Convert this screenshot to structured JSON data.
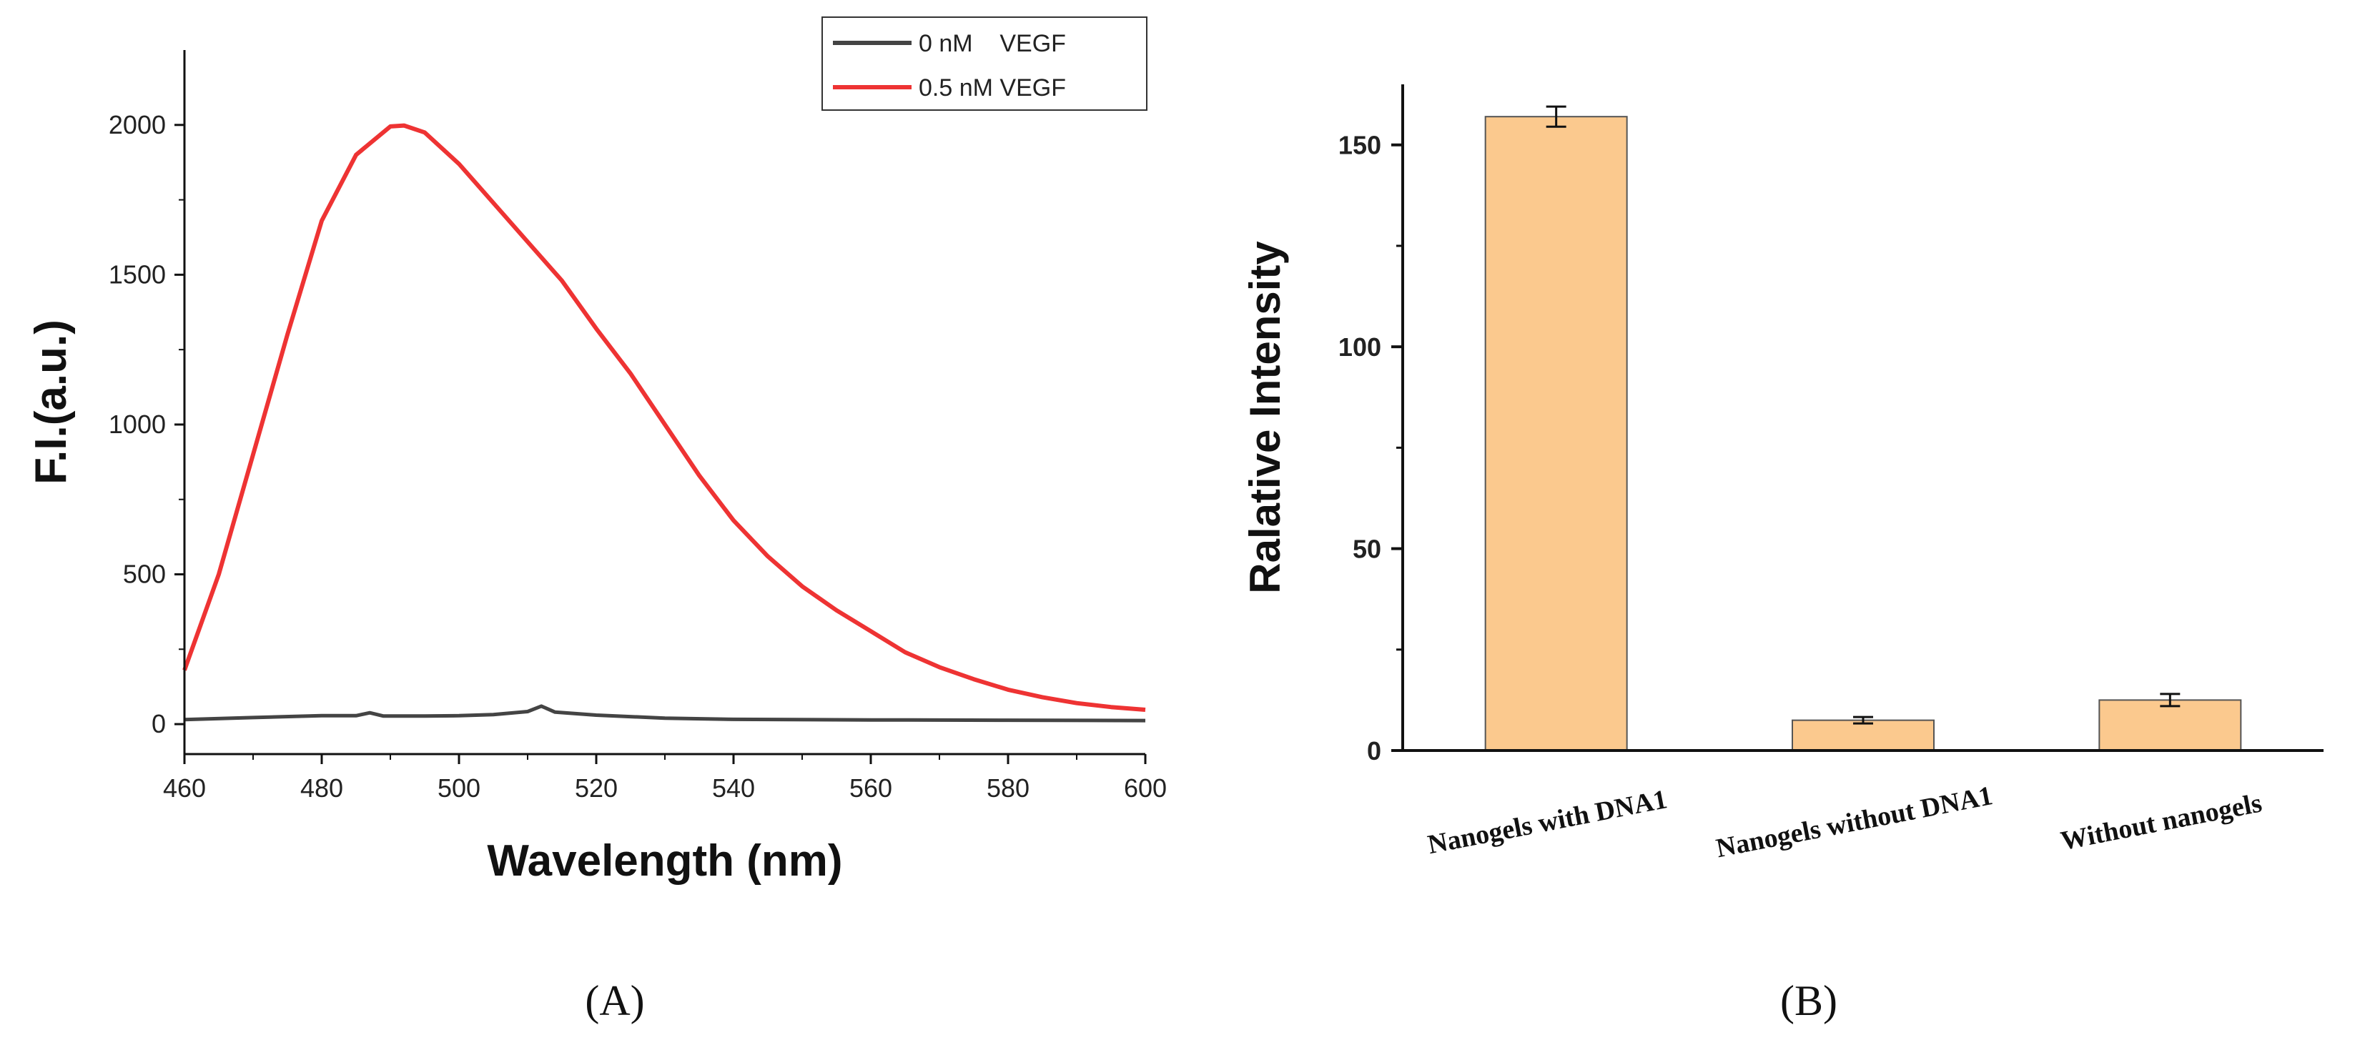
{
  "chart_data": [
    {
      "type": "line",
      "xlabel": "Wavelength (nm)",
      "ylabel": "F.I.(a.u.)",
      "xlim": [
        460,
        600
      ],
      "ylim": [
        -100,
        2250
      ],
      "xticks": [
        460,
        480,
        500,
        520,
        540,
        560,
        580,
        600
      ],
      "yticks": [
        0,
        500,
        1000,
        1500,
        2000
      ],
      "legend_position": "top-right",
      "series": [
        {
          "name": "0 nM    VEGF",
          "color": "#444444",
          "x": [
            460,
            470,
            480,
            485,
            487,
            489,
            495,
            500,
            505,
            510,
            512,
            514,
            520,
            530,
            540,
            560,
            580,
            600
          ],
          "y": [
            15,
            22,
            28,
            28,
            38,
            27,
            27,
            28,
            32,
            42,
            60,
            40,
            30,
            20,
            16,
            14,
            13,
            12
          ]
        },
        {
          "name": "0.5 nM VEGF",
          "color": "#ee3333",
          "x": [
            460,
            465,
            470,
            475,
            480,
            485,
            490,
            492,
            495,
            500,
            505,
            510,
            515,
            520,
            525,
            530,
            535,
            540,
            545,
            550,
            555,
            560,
            565,
            570,
            575,
            580,
            585,
            590,
            595,
            600
          ],
          "y": [
            180,
            500,
            900,
            1300,
            1680,
            1900,
            1995,
            1998,
            1975,
            1870,
            1740,
            1610,
            1480,
            1320,
            1170,
            1000,
            830,
            680,
            560,
            460,
            380,
            310,
            240,
            190,
            150,
            115,
            90,
            70,
            57,
            48
          ]
        }
      ]
    },
    {
      "type": "bar",
      "ylabel": "Ralative Intensity",
      "ylim": [
        0,
        165
      ],
      "yticks": [
        0,
        50,
        100,
        150
      ],
      "categories": [
        "Nanogels with DNA1",
        "Nanogels without DNA1",
        "Without nanogels"
      ],
      "values": [
        157,
        7.5,
        12.5
      ],
      "errors": [
        2.5,
        0.8,
        1.5
      ],
      "bar_color": "#fbc98e",
      "edge_color": "#555555"
    }
  ],
  "panels": {
    "a": "(A)",
    "b": "(B)"
  }
}
